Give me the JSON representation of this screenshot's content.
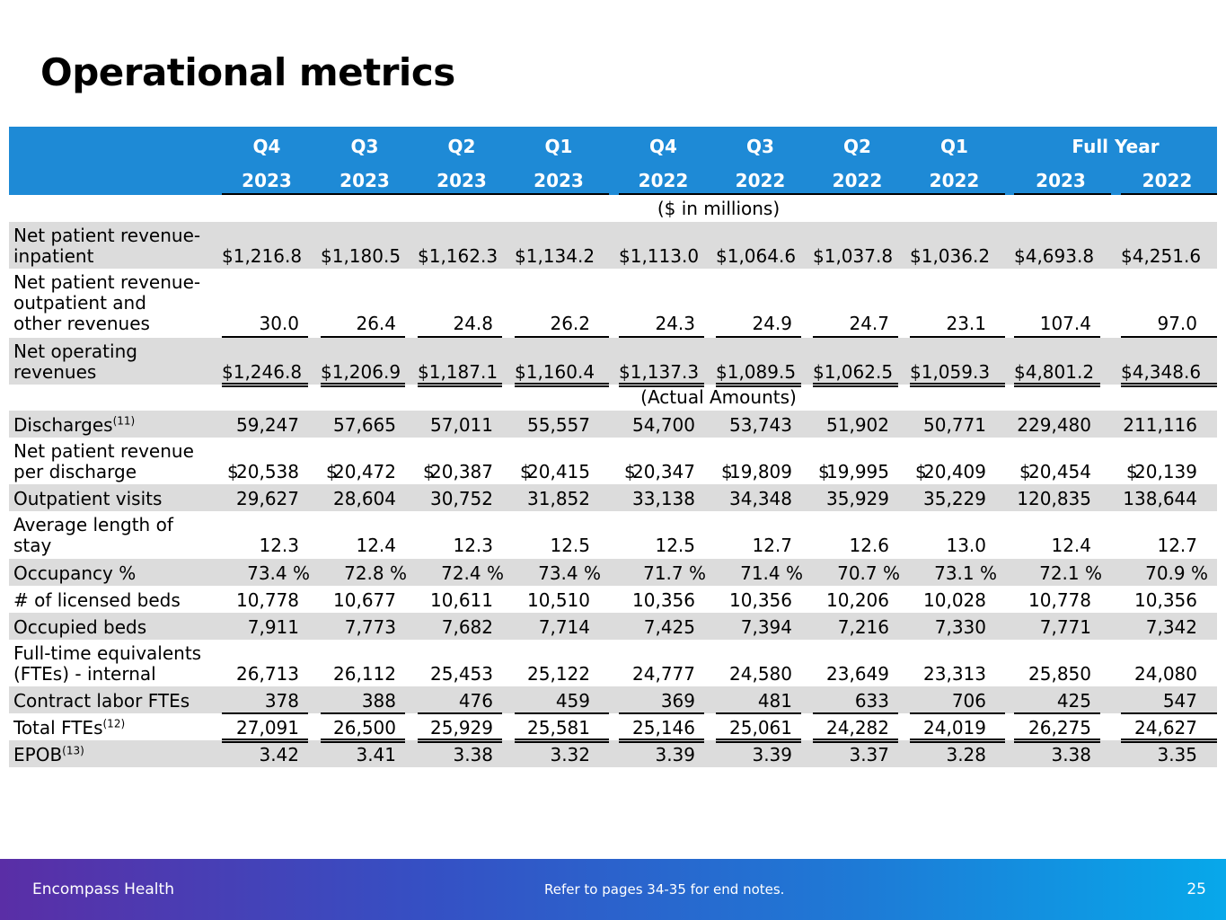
{
  "title": "Operational metrics",
  "header": {
    "quarters": [
      "Q4",
      "Q3",
      "Q2",
      "Q1",
      "Q4",
      "Q3",
      "Q2",
      "Q1"
    ],
    "years": [
      "2023",
      "2023",
      "2023",
      "2023",
      "2022",
      "2022",
      "2022",
      "2022"
    ],
    "full_year_label": "Full Year",
    "full_year_years": [
      "2023",
      "2022"
    ]
  },
  "sections": {
    "millions": "($ in millions)",
    "actual": "(Actual Amounts)"
  },
  "rows": [
    {
      "label": "Net patient revenue-\n   inpatient",
      "values": [
        "$1,216.8",
        "$1,180.5",
        "$1,162.3",
        "$1,134.2",
        "$1,113.0",
        "$1,064.6",
        "$1,037.8",
        "$1,036.2",
        "$4,693.8",
        "$4,251.6"
      ]
    },
    {
      "label": "Net patient revenue-\n   outpatient and\n   other revenues",
      "values": [
        "30.0",
        "26.4",
        "24.8",
        "26.2",
        "24.3",
        "24.9",
        "24.7",
        "23.1",
        "107.4",
        "97.0"
      ]
    },
    {
      "label": "Net operating\n   revenues",
      "values": [
        "$1,246.8",
        "$1,206.9",
        "$1,187.1",
        "$1,160.4",
        "$1,137.3",
        "$1,089.5",
        "$1,062.5",
        "$1,059.3",
        "$4,801.2",
        "$4,348.6"
      ]
    },
    {
      "label": "Discharges",
      "sup": "(11)",
      "values": [
        "59,247",
        "57,665",
        "57,011",
        "55,557",
        "54,700",
        "53,743",
        "51,902",
        "50,771",
        "229,480",
        "211,116"
      ]
    },
    {
      "label": "Net patient revenue\nper discharge",
      "dollar": "$",
      "values": [
        "20,538",
        "20,472",
        "20,387",
        "20,415",
        "20,347",
        "19,809",
        "19,995",
        "20,409",
        "20,454",
        "20,139"
      ]
    },
    {
      "label": "Outpatient visits",
      "values": [
        "29,627",
        "28,604",
        "30,752",
        "31,852",
        "33,138",
        "34,348",
        "35,929",
        "35,229",
        "120,835",
        "138,644"
      ]
    },
    {
      "label": "Average length of\n   stay",
      "values": [
        "12.3",
        "12.4",
        "12.3",
        "12.5",
        "12.5",
        "12.7",
        "12.6",
        "13.0",
        "12.4",
        "12.7"
      ]
    },
    {
      "label": "Occupancy %",
      "values": [
        "73.4 %",
        "72.8 %",
        "72.4 %",
        "73.4 %",
        "71.7 %",
        "71.4 %",
        "70.7 %",
        "73.1 %",
        "72.1 %",
        "70.9 %"
      ]
    },
    {
      "label": "# of licensed beds",
      "values": [
        "10,778",
        "10,677",
        "10,611",
        "10,510",
        "10,356",
        "10,356",
        "10,206",
        "10,028",
        "10,778",
        "10,356"
      ]
    },
    {
      "label": "Occupied beds",
      "values": [
        "7,911",
        "7,773",
        "7,682",
        "7,714",
        "7,425",
        "7,394",
        "7,216",
        "7,330",
        "7,771",
        "7,342"
      ]
    },
    {
      "label": "Full-time equivalents\n   (FTEs) - internal",
      "values": [
        "26,713",
        "26,112",
        "25,453",
        "25,122",
        "24,777",
        "24,580",
        "23,649",
        "23,313",
        "25,850",
        "24,080"
      ]
    },
    {
      "label": "Contract labor FTEs",
      "values": [
        "378",
        "388",
        "476",
        "459",
        "369",
        "481",
        "633",
        "706",
        "425",
        "547"
      ]
    },
    {
      "label": "Total FTEs",
      "sup": "(12)",
      "values": [
        "27,091",
        "26,500",
        "25,929",
        "25,581",
        "25,146",
        "25,061",
        "24,282",
        "24,019",
        "26,275",
        "24,627"
      ]
    },
    {
      "label": "EPOB",
      "sup": "(13)",
      "values": [
        "3.42",
        "3.41",
        "3.38",
        "3.32",
        "3.39",
        "3.39",
        "3.37",
        "3.28",
        "3.38",
        "3.35"
      ]
    }
  ],
  "footer": {
    "company": "Encompass Health",
    "note": "Refer to pages 34-35 for end notes.",
    "page": "25"
  }
}
